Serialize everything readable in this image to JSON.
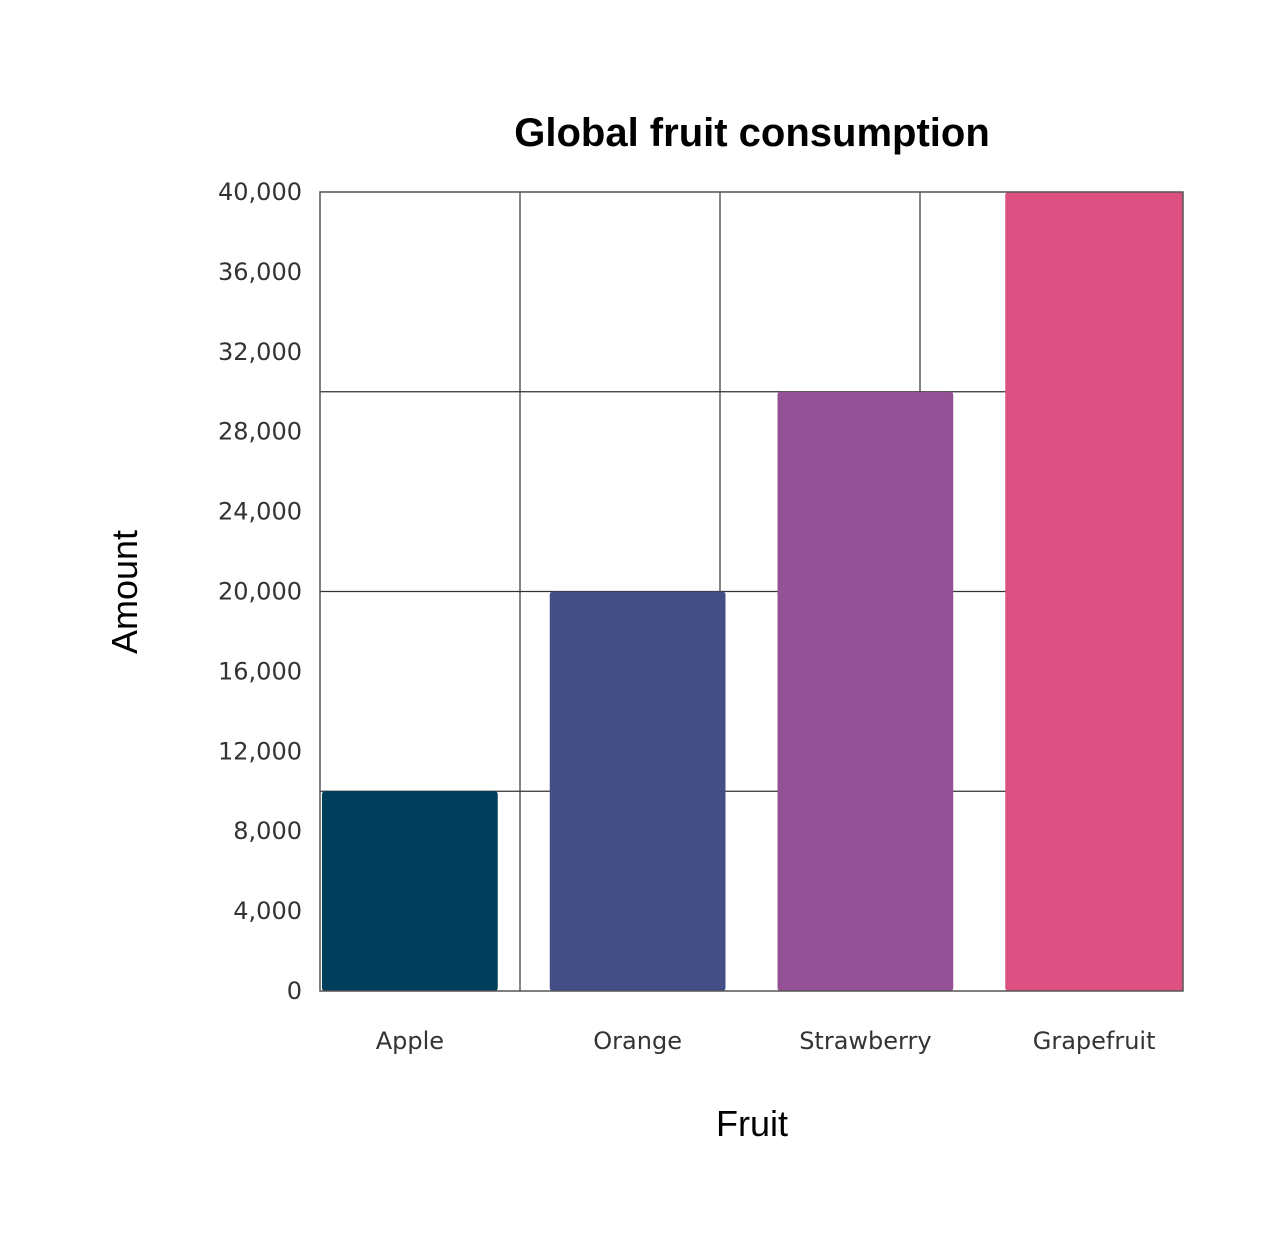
{
  "chart_data": {
    "type": "bar",
    "title": "Global fruit consumption",
    "xlabel": "Fruit",
    "ylabel": "Amount",
    "categories": [
      "Apple",
      "Orange",
      "Strawberry",
      "Grapefruit"
    ],
    "values": [
      10000,
      20000,
      30000,
      40000
    ],
    "colors": [
      "#003f5c",
      "#444e86",
      "#955196",
      "#dd5182"
    ],
    "ylim": [
      0,
      40000
    ],
    "yticks": [
      0,
      4000,
      8000,
      12000,
      16000,
      20000,
      24000,
      28000,
      32000,
      36000,
      40000
    ],
    "ytick_labels": [
      "0",
      "4,000",
      "8,000",
      "12,000",
      "16,000",
      "20,000",
      "24,000",
      "28,000",
      "32,000",
      "36,000",
      "40,000"
    ],
    "grid": true
  }
}
